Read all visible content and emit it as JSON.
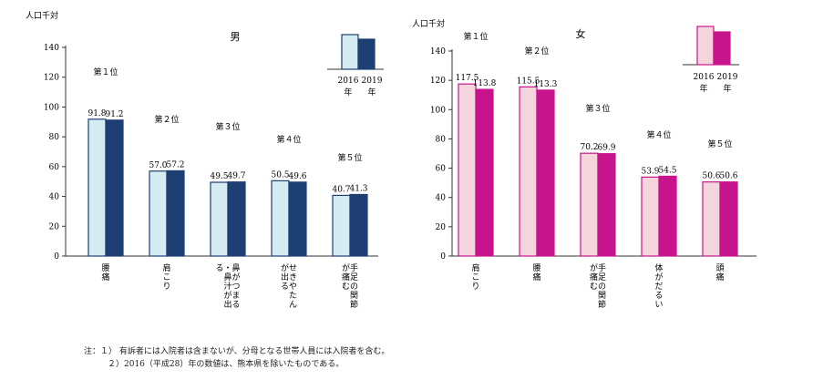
{
  "chart_data": [
    {
      "type": "bar",
      "title": "男",
      "ylabel": "人口千対",
      "ylim": [
        0,
        140
      ],
      "yticks": [
        0,
        20,
        40,
        60,
        80,
        100,
        120,
        140
      ],
      "categories": [
        "腰痛",
        "肩こり",
        "鼻がつまる・鼻汁が出る",
        "せきやたんが出る",
        "手足の関節が痛む"
      ],
      "ranks": [
        "第１位",
        "第２位",
        "第３位",
        "第４位",
        "第５位"
      ],
      "series": [
        {
          "name": "2016年",
          "values": [
            91.8,
            57.0,
            49.5,
            50.5,
            40.7
          ],
          "fill": "#d6ecf3",
          "stroke": "#1e3f73"
        },
        {
          "name": "2019年",
          "values": [
            91.2,
            57.2,
            49.7,
            49.6,
            41.3
          ],
          "fill": "#1e3f73",
          "stroke": "#1e3f73"
        }
      ],
      "legend_position": "top-right"
    },
    {
      "type": "bar",
      "title": "女",
      "ylabel": "人口千対",
      "ylim": [
        0,
        140
      ],
      "yticks": [
        0,
        20,
        40,
        60,
        80,
        100,
        120,
        140
      ],
      "categories": [
        "肩こり",
        "腰痛",
        "手足の関節が痛む",
        "体がだるい",
        "頭痛"
      ],
      "ranks": [
        "第１位",
        "第２位",
        "第３位",
        "第４位",
        "第５位"
      ],
      "series": [
        {
          "name": "2016年",
          "values": [
            117.5,
            115.5,
            70.2,
            53.9,
            50.6
          ],
          "fill": "#f5d5dc",
          "stroke": "#c8148c"
        },
        {
          "name": "2019年",
          "values": [
            113.8,
            113.3,
            69.9,
            54.5,
            50.6
          ],
          "fill": "#c8148c",
          "stroke": "#c8148c"
        }
      ],
      "legend_position": "top-right"
    }
  ],
  "notes": {
    "line1": "注：１） 有訴者には入院者は含まないが、分母となる世帯人員には入院者を含む。",
    "line2": "２）2016（平成28）年の数値は、熊本県を除いたものである。"
  },
  "legend_labels": {
    "y2016_a": "2016",
    "y2019_a": "2019",
    "nen": "年"
  }
}
